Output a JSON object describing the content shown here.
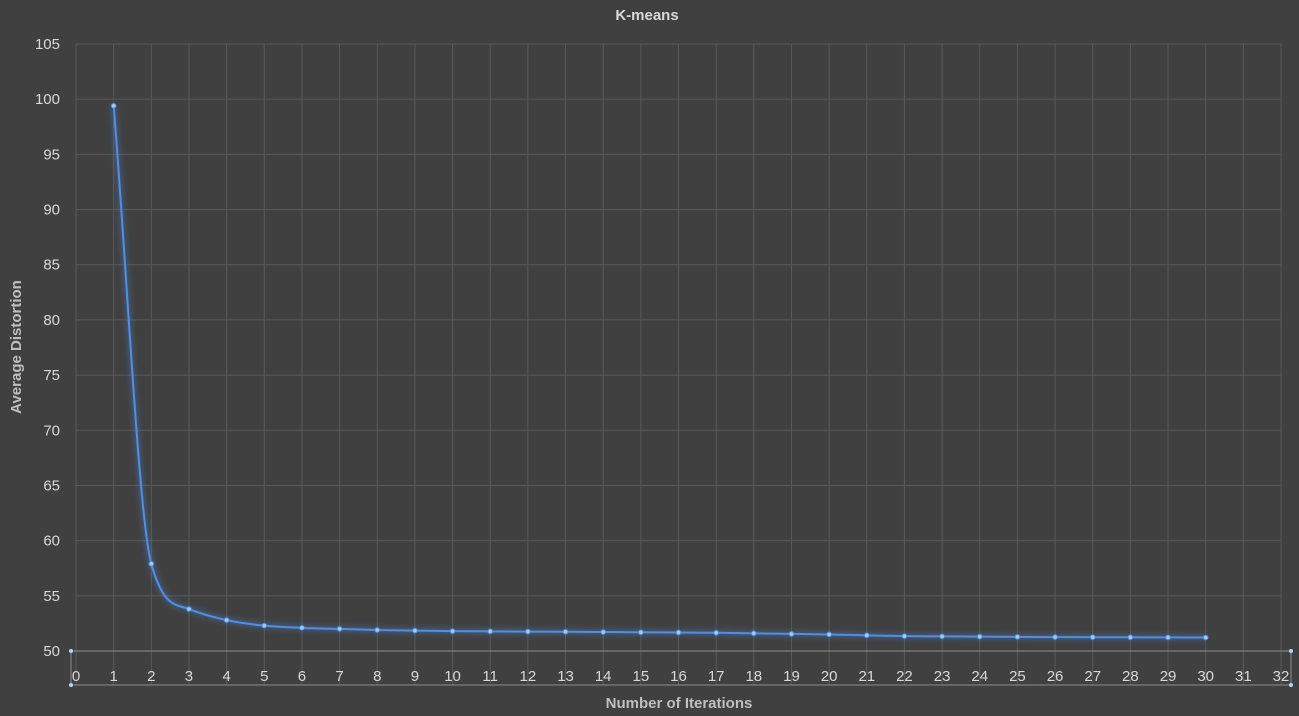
{
  "chart_data": {
    "type": "line",
    "title": "K-means",
    "xlabel": "Number of Iterations",
    "ylabel": "Average Distortion",
    "xlim": [
      0,
      32
    ],
    "ylim": [
      50,
      105
    ],
    "x_ticks": [
      0,
      1,
      2,
      3,
      4,
      5,
      6,
      7,
      8,
      9,
      10,
      11,
      12,
      13,
      14,
      15,
      16,
      17,
      18,
      19,
      20,
      21,
      22,
      23,
      24,
      25,
      26,
      27,
      28,
      29,
      30,
      31,
      32
    ],
    "y_ticks": [
      50,
      55,
      60,
      65,
      70,
      75,
      80,
      85,
      90,
      95,
      100,
      105
    ],
    "grid": true,
    "legend": "none",
    "smooth": true,
    "series": [
      {
        "color": "#4f8fe8",
        "x": [
          1,
          2,
          3,
          4,
          5,
          6,
          7,
          8,
          9,
          10,
          11,
          12,
          13,
          14,
          15,
          16,
          17,
          18,
          19,
          20,
          21,
          22,
          23,
          24,
          25,
          26,
          27,
          28,
          29,
          30
        ],
        "y": [
          99.4,
          57.9,
          53.8,
          52.8,
          52.3,
          52.1,
          52.0,
          51.9,
          51.85,
          51.8,
          51.78,
          51.76,
          51.74,
          51.72,
          51.7,
          51.68,
          51.65,
          51.6,
          51.55,
          51.5,
          51.42,
          51.35,
          51.32,
          51.3,
          51.28,
          51.26,
          51.25,
          51.24,
          51.23,
          51.22
        ]
      }
    ]
  }
}
